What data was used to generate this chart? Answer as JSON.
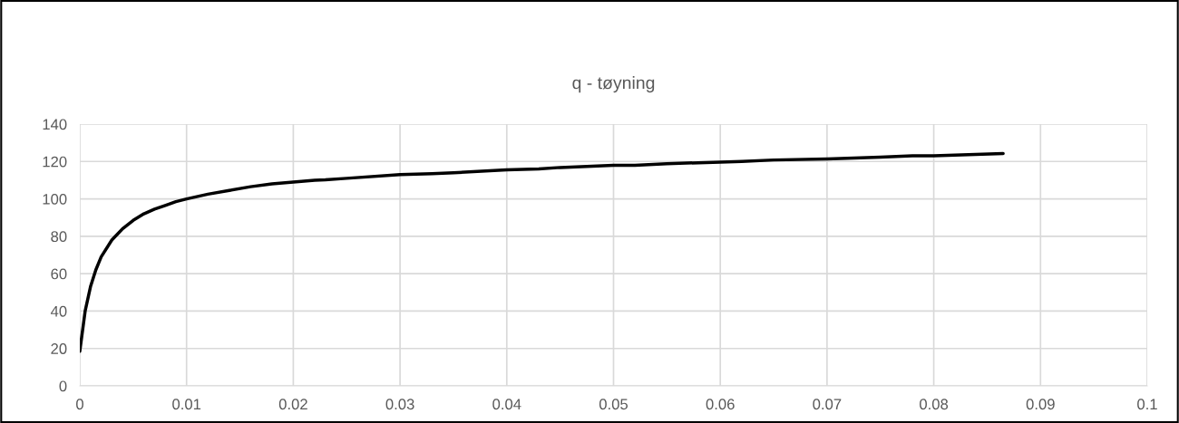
{
  "chart_data": {
    "type": "line",
    "title": "q - tøyning",
    "x": [
      0,
      0.0005,
      0.001,
      0.0015,
      0.002,
      0.003,
      0.004,
      0.005,
      0.006,
      0.007,
      0.008,
      0.009,
      0.01,
      0.012,
      0.014,
      0.016,
      0.018,
      0.02,
      0.022,
      0.023,
      0.025,
      0.03,
      0.033,
      0.035,
      0.04,
      0.043,
      0.045,
      0.05,
      0.052,
      0.055,
      0.06,
      0.062,
      0.065,
      0.07,
      0.075,
      0.078,
      0.08,
      0.0865
    ],
    "series": [
      {
        "color": "#000000",
        "values": [
          18.5,
          40,
          53,
          62,
          69,
          78,
          84,
          88.5,
          92,
          94.5,
          96.5,
          98.5,
          100,
          102.5,
          104.5,
          106.5,
          108,
          109,
          110,
          110.2,
          111,
          113,
          113.5,
          114,
          115.5,
          116,
          116.8,
          118,
          118,
          118.8,
          119.7,
          120,
          120.8,
          121.3,
          122.3,
          123,
          123,
          124.3
        ]
      }
    ],
    "xlim": [
      0,
      0.1
    ],
    "xticks": [
      0,
      0.01,
      0.02,
      0.03,
      0.04,
      0.05,
      0.06,
      0.07,
      0.08,
      0.09,
      0.1
    ],
    "ylim": [
      0,
      140
    ],
    "yticks": [
      0,
      20,
      40,
      60,
      80,
      100,
      120,
      140
    ],
    "grid": true,
    "marker": "none",
    "line_style": "solid"
  }
}
